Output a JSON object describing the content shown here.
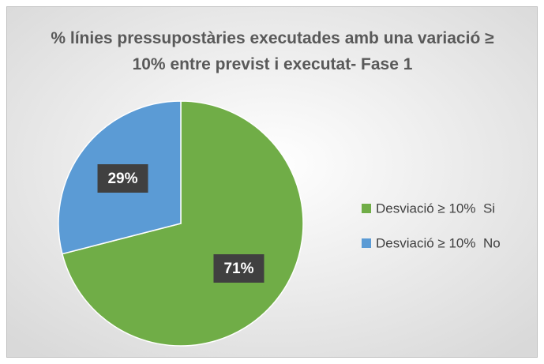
{
  "chart_data": {
    "type": "pie",
    "title": "% línies pressupostàries executades amb una variació ≥ 10% entre previst i executat- Fase 1",
    "categories": [
      "Desviació ≥ 10%  Si",
      "Desviació ≥ 10%  No"
    ],
    "values": [
      71,
      29
    ],
    "value_labels": [
      "71%",
      "29%"
    ],
    "colors": [
      "#70ad47",
      "#5b9bd5"
    ],
    "legend": "right"
  }
}
